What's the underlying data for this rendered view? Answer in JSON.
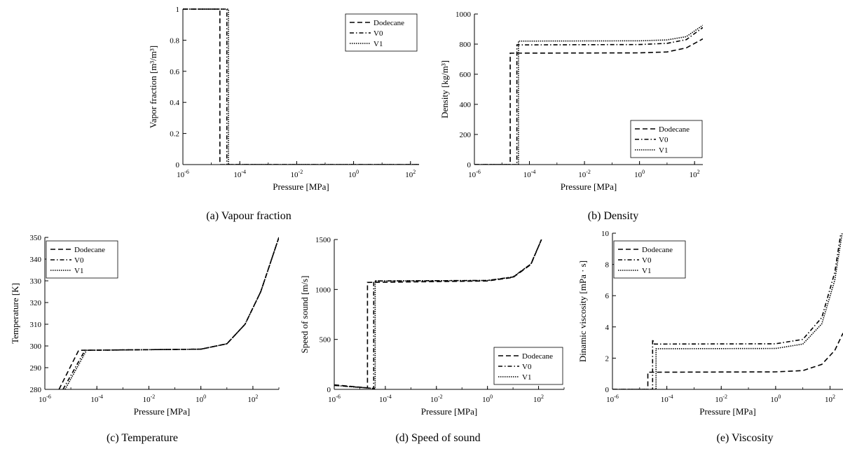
{
  "chart_data": [
    {
      "type": "line",
      "caption": "(a) Vapour fraction",
      "xlabel": "Pressure [MPa]",
      "ylabel": "Vapor fraction [m³/m³]",
      "x_scale": "log",
      "xlim": [
        1e-06,
        200
      ],
      "ylim": [
        0,
        1
      ],
      "x_ticks": [
        "10⁻⁶",
        "10⁻⁴",
        "10⁻²",
        "10⁰",
        "10²"
      ],
      "y_ticks": [
        "0",
        "0.2",
        "0.4",
        "0.6",
        "0.8",
        "1"
      ],
      "legend_position": "top-right",
      "series": [
        {
          "name": "Dodecane",
          "style": "dashed",
          "points": [
            [
              1e-06,
              1
            ],
            [
              2e-05,
              1
            ],
            [
              2e-05,
              0
            ],
            [
              200,
              0
            ]
          ]
        },
        {
          "name": "V0",
          "style": "dashdot",
          "points": [
            [
              1e-06,
              1
            ],
            [
              3.5e-05,
              1
            ],
            [
              3.5e-05,
              0
            ],
            [
              200,
              0
            ]
          ]
        },
        {
          "name": "V1",
          "style": "dotted",
          "points": [
            [
              1e-06,
              1
            ],
            [
              4e-05,
              1
            ],
            [
              4e-05,
              0
            ],
            [
              200,
              0
            ]
          ]
        }
      ]
    },
    {
      "type": "line",
      "caption": "(b) Density",
      "xlabel": "Pressure [MPa]",
      "ylabel": "Density [kg/m³]",
      "x_scale": "log",
      "xlim": [
        1e-06,
        200
      ],
      "ylim": [
        0,
        1000
      ],
      "x_ticks": [
        "10⁻⁶",
        "10⁻⁴",
        "10⁻²",
        "10⁰",
        "10²"
      ],
      "y_ticks": [
        "0",
        "200",
        "400",
        "600",
        "800",
        "1000"
      ],
      "legend_position": "bottom-right",
      "series": [
        {
          "name": "Dodecane",
          "style": "dashed",
          "points": [
            [
              1e-06,
              0
            ],
            [
              2e-05,
              0
            ],
            [
              2e-05,
              740
            ],
            [
              1,
              742
            ],
            [
              10,
              748
            ],
            [
              50,
              775
            ],
            [
              200,
              835
            ]
          ]
        },
        {
          "name": "V0",
          "style": "dashdot",
          "points": [
            [
              1e-06,
              0
            ],
            [
              3.5e-05,
              0
            ],
            [
              3.5e-05,
              795
            ],
            [
              1,
              797
            ],
            [
              10,
              805
            ],
            [
              50,
              830
            ],
            [
              200,
              910
            ]
          ]
        },
        {
          "name": "V1",
          "style": "dotted",
          "points": [
            [
              1e-06,
              0
            ],
            [
              4e-05,
              0
            ],
            [
              4e-05,
              820
            ],
            [
              1,
              822
            ],
            [
              10,
              828
            ],
            [
              50,
              850
            ],
            [
              200,
              925
            ]
          ]
        }
      ]
    },
    {
      "type": "line",
      "caption": "(c) Temperature",
      "xlabel": "Pressure [MPa]",
      "ylabel": "Temperature [K]",
      "x_scale": "log",
      "xlim": [
        1e-06,
        1000
      ],
      "ylim": [
        280,
        350
      ],
      "x_ticks": [
        "10⁻⁶",
        "10⁻⁴",
        "10⁻²",
        "10⁰",
        "10²"
      ],
      "y_ticks": [
        "280",
        "290",
        "300",
        "310",
        "320",
        "330",
        "340",
        "350"
      ],
      "legend_position": "top-left",
      "series": [
        {
          "name": "Dodecane",
          "style": "dashed",
          "points": [
            [
              3.5e-06,
              280
            ],
            [
              2e-05,
              298
            ],
            [
              1,
              298.5
            ],
            [
              10,
              301
            ],
            [
              50,
              310
            ],
            [
              200,
              325
            ],
            [
              1000,
              350
            ]
          ]
        },
        {
          "name": "V0",
          "style": "dashdot",
          "points": [
            [
              5e-06,
              280
            ],
            [
              3.5e-05,
              298
            ],
            [
              1,
              298.5
            ],
            [
              10,
              301
            ],
            [
              50,
              310
            ],
            [
              200,
              325
            ],
            [
              1000,
              350
            ]
          ]
        },
        {
          "name": "V1",
          "style": "dotted",
          "points": [
            [
              6e-06,
              280
            ],
            [
              4e-05,
              298
            ],
            [
              1,
              298.5
            ],
            [
              10,
              301
            ],
            [
              50,
              310
            ],
            [
              200,
              325
            ],
            [
              1000,
              350
            ]
          ]
        }
      ]
    },
    {
      "type": "line",
      "caption": "(d) Speed of sound",
      "xlabel": "Pressure [MPa]",
      "ylabel": "Speed of sound [m/s]",
      "x_scale": "log",
      "xlim": [
        1e-06,
        1000
      ],
      "ylim": [
        0,
        1500
      ],
      "x_ticks": [
        "10⁻⁶",
        "10⁻⁴",
        "10⁻²",
        "10⁰",
        "10²"
      ],
      "y_ticks": [
        "0",
        "500",
        "1000",
        "1500"
      ],
      "legend_position": "bottom-right",
      "series": [
        {
          "name": "Dodecane",
          "style": "dashed",
          "points": [
            [
              1e-06,
              45
            ],
            [
              2e-05,
              15
            ],
            [
              2e-05,
              1070
            ],
            [
              1,
              1085
            ],
            [
              10,
              1120
            ],
            [
              50,
              1250
            ],
            [
              130,
              1500
            ]
          ]
        },
        {
          "name": "V0",
          "style": "dashdot",
          "points": [
            [
              1e-06,
              40
            ],
            [
              3.5e-05,
              10
            ],
            [
              3.5e-05,
              1085
            ],
            [
              1,
              1090
            ],
            [
              10,
              1125
            ],
            [
              50,
              1255
            ],
            [
              130,
              1500
            ]
          ]
        },
        {
          "name": "V1",
          "style": "dotted",
          "points": [
            [
              1e-06,
              40
            ],
            [
              4e-05,
              8
            ],
            [
              4e-05,
              1085
            ],
            [
              1,
              1090
            ],
            [
              10,
              1125
            ],
            [
              50,
              1255
            ],
            [
              130,
              1500
            ]
          ]
        }
      ]
    },
    {
      "type": "line",
      "caption": "(e) Viscosity",
      "xlabel": "Pressure [MPa]",
      "ylabel": "Dinamic viscosity [mPa · s]",
      "x_scale": "log",
      "xlim": [
        1e-06,
        300
      ],
      "ylim": [
        0,
        10
      ],
      "x_ticks": [
        "10⁻⁶",
        "10⁻⁴",
        "10⁻²",
        "10⁰",
        "10²"
      ],
      "y_ticks": [
        "0",
        "2",
        "4",
        "6",
        "8",
        "10"
      ],
      "legend_position": "top-left",
      "series": [
        {
          "name": "Dodecane",
          "style": "dashed",
          "points": [
            [
              1e-06,
              0
            ],
            [
              2e-05,
              0
            ],
            [
              2e-05,
              1.1
            ],
            [
              3.5e-05,
              1.1
            ],
            [
              1,
              1.12
            ],
            [
              10,
              1.2
            ],
            [
              50,
              1.6
            ],
            [
              150,
              2.5
            ],
            [
              300,
              3.6
            ]
          ]
        },
        {
          "name": "V0",
          "style": "dashdot",
          "points": [
            [
              1e-06,
              0
            ],
            [
              3e-05,
              0
            ],
            [
              3e-05,
              3.2
            ],
            [
              3.5e-05,
              2.9
            ],
            [
              1,
              2.92
            ],
            [
              10,
              3.2
            ],
            [
              50,
              4.6
            ],
            [
              150,
              7.5
            ],
            [
              250,
              10
            ]
          ]
        },
        {
          "name": "V1",
          "style": "dotted",
          "points": [
            [
              1e-06,
              0
            ],
            [
              4e-05,
              0
            ],
            [
              4e-05,
              2.6
            ],
            [
              1,
              2.62
            ],
            [
              10,
              2.9
            ],
            [
              50,
              4.2
            ],
            [
              150,
              7.0
            ],
            [
              280,
              10
            ]
          ]
        }
      ]
    }
  ]
}
